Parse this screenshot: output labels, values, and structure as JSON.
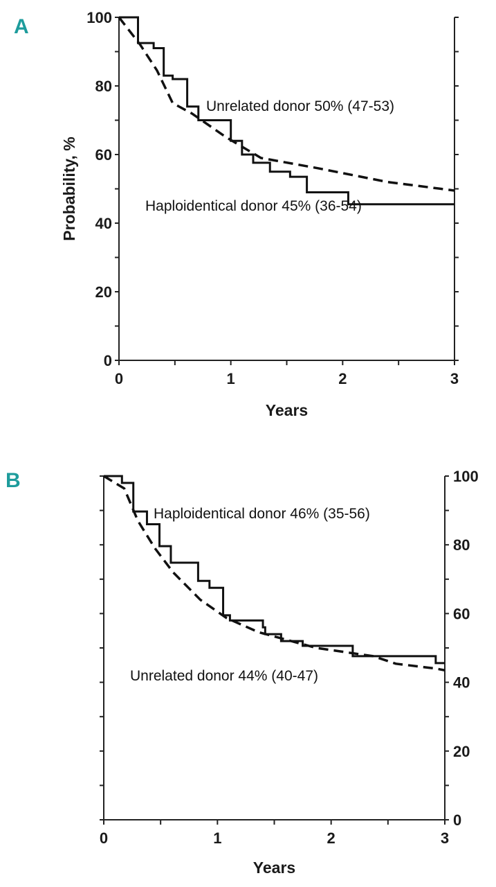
{
  "chart_data": [
    {
      "type": "line",
      "panel_label": "A",
      "xlabel": "Years",
      "ylabel": "Probability, %",
      "xlim": [
        0,
        3
      ],
      "ylim": [
        0,
        100
      ],
      "xticks": [
        "0",
        "1",
        "2",
        "3"
      ],
      "yticks": [
        "0",
        "20",
        "40",
        "60",
        "80",
        "100"
      ],
      "y_axis_side": "left",
      "series": [
        {
          "name": "Haploidentical donor",
          "style": "solid-step",
          "annotation": "Haploidentical donor  45% (36-54)",
          "x": [
            0,
            0.17,
            0.31,
            0.4,
            0.48,
            0.61,
            0.71,
            1.0,
            1.1,
            1.2,
            1.35,
            1.53,
            1.68,
            1.97,
            2.05,
            3.0
          ],
          "y": [
            100,
            92.5,
            91,
            83,
            82,
            74,
            70,
            64,
            60,
            57.6,
            55,
            53.5,
            49,
            49,
            45.5,
            45.5
          ]
        },
        {
          "name": "Unrelated donor",
          "style": "dashed",
          "annotation": "Unrelated donor  50% (47-53)",
          "x": [
            0,
            0.19,
            0.34,
            0.48,
            0.65,
            0.96,
            1.27,
            1.78,
            2.4,
            3.0
          ],
          "y": [
            100,
            92,
            84.5,
            75,
            72,
            65,
            59,
            56,
            52,
            49.5
          ]
        }
      ]
    },
    {
      "type": "line",
      "panel_label": "B",
      "xlabel": "Years",
      "ylabel": "",
      "xlim": [
        0,
        3
      ],
      "ylim": [
        0,
        100
      ],
      "xticks": [
        "0",
        "1",
        "2",
        "3"
      ],
      "yticks": [
        "0",
        "20",
        "40",
        "60",
        "80",
        "100"
      ],
      "y_axis_side": "right",
      "series": [
        {
          "name": "Haploidentical donor",
          "style": "solid-step",
          "annotation": "Haploidentical donor  46% (35-56)",
          "x": [
            0,
            0.16,
            0.26,
            0.37,
            0.38,
            0.47,
            0.49,
            0.55,
            0.59,
            0.73,
            0.83,
            0.93,
            0.99,
            1.05,
            1.11,
            1.4,
            1.42,
            1.56,
            1.75,
            2.15,
            2.19,
            2.92,
            2.92,
            3.0
          ],
          "y": [
            100,
            98,
            89.7,
            89.7,
            86,
            86,
            79.6,
            79.6,
            74.8,
            74.8,
            69.5,
            67.5,
            67.5,
            59.5,
            58,
            56,
            54,
            52,
            50.6,
            50.6,
            47.6,
            47.6,
            45.6,
            45.6
          ]
        },
        {
          "name": "Unrelated donor",
          "style": "dashed",
          "annotation": "Unrelated donor  44% (40-47)",
          "x": [
            0,
            0.18,
            0.3,
            0.45,
            0.61,
            0.85,
            1.08,
            1.36,
            1.87,
            2.37,
            2.57,
            2.92,
            3.0
          ],
          "y": [
            100,
            96.4,
            87,
            79,
            72,
            64,
            58.7,
            54.6,
            50,
            47.6,
            45.4,
            44,
            43.5
          ]
        }
      ]
    }
  ]
}
